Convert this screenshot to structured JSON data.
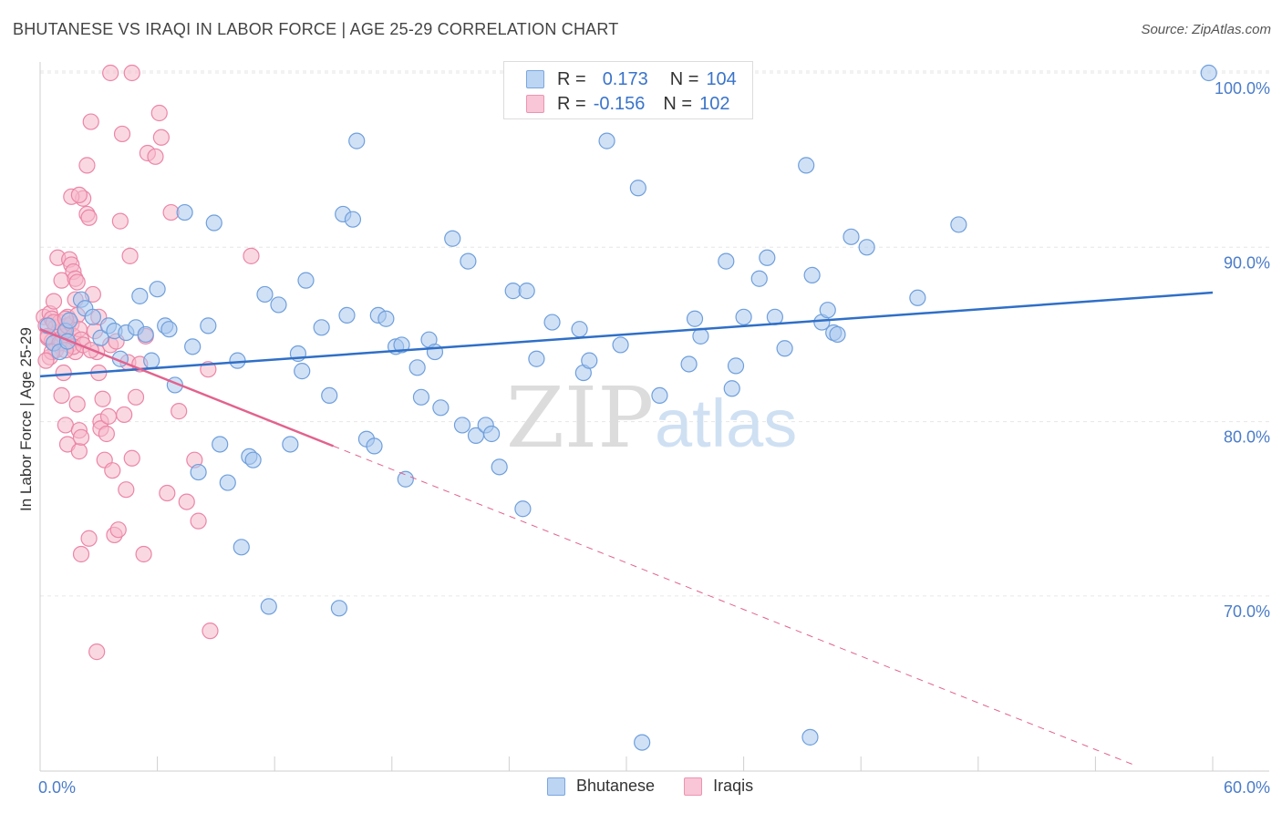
{
  "header": {
    "title": "BHUTANESE VS IRAQI IN LABOR FORCE | AGE 25-29 CORRELATION CHART",
    "source": "Source: ZipAtlas.com"
  },
  "legend": {
    "rows": [
      {
        "r_label": "R =",
        "r_value": "0.173",
        "n_label": "N =",
        "n_value": "104"
      },
      {
        "r_label": "R =",
        "r_value": "-0.156",
        "n_label": "N =",
        "n_value": "102"
      }
    ]
  },
  "watermark": {
    "zip": "ZIP",
    "atlas": "atlas"
  },
  "colors": {
    "blue_fill": "#a9c8ee",
    "blue_stroke": "#6f9fdc",
    "blue_line": "#2f6fc7",
    "pink_fill": "#f6b8cb",
    "pink_stroke": "#eb86a7",
    "pink_line": "#e2628e",
    "axis_label": "#4a7cc9",
    "grid": "#e6e6e6"
  },
  "chart_data": {
    "type": "scatter",
    "title": "BHUTANESE VS IRAQI IN LABOR FORCE | AGE 25-29 CORRELATION CHART",
    "xlabel": "",
    "ylabel": "In Labor Force | Age 25-29",
    "xlim": [
      0,
      60
    ],
    "ylim": [
      60,
      101
    ],
    "x_tick_labels": [
      "0.0%",
      "60.0%"
    ],
    "y_ticks": [
      70,
      80,
      90,
      100
    ],
    "y_tick_labels": [
      "70.0%",
      "80.0%",
      "90.0%",
      "100.0%"
    ],
    "grid": true,
    "legend_position": "bottom-center",
    "series": [
      {
        "name": "Bhutanese",
        "r": 0.173,
        "n": 104,
        "trend": {
          "x": [
            0,
            60
          ],
          "y": [
            82.6,
            87.4
          ],
          "style": "solid"
        },
        "points": [
          [
            0.4,
            85.5
          ],
          [
            0.7,
            84.5
          ],
          [
            1.0,
            84.0
          ],
          [
            1.3,
            85.2
          ],
          [
            1.4,
            84.6
          ],
          [
            1.5,
            85.8
          ],
          [
            2.1,
            87.0
          ],
          [
            2.3,
            86.5
          ],
          [
            2.7,
            86.0
          ],
          [
            3.1,
            84.8
          ],
          [
            3.5,
            85.5
          ],
          [
            3.8,
            85.2
          ],
          [
            4.1,
            83.6
          ],
          [
            4.4,
            85.1
          ],
          [
            4.9,
            85.4
          ],
          [
            5.1,
            87.2
          ],
          [
            5.4,
            85.0
          ],
          [
            5.7,
            83.5
          ],
          [
            6.0,
            87.6
          ],
          [
            6.4,
            85.5
          ],
          [
            6.6,
            85.3
          ],
          [
            6.9,
            82.1
          ],
          [
            7.4,
            92.0
          ],
          [
            7.8,
            84.3
          ],
          [
            8.1,
            77.1
          ],
          [
            8.6,
            85.5
          ],
          [
            8.9,
            91.4
          ],
          [
            9.2,
            78.7
          ],
          [
            9.6,
            76.5
          ],
          [
            10.1,
            83.5
          ],
          [
            10.3,
            72.8
          ],
          [
            10.7,
            78.0
          ],
          [
            10.9,
            77.8
          ],
          [
            11.5,
            87.3
          ],
          [
            11.7,
            69.4
          ],
          [
            12.2,
            86.7
          ],
          [
            12.8,
            78.7
          ],
          [
            13.2,
            83.9
          ],
          [
            13.4,
            82.9
          ],
          [
            13.6,
            88.1
          ],
          [
            14.4,
            85.4
          ],
          [
            14.8,
            81.5
          ],
          [
            15.3,
            69.3
          ],
          [
            15.5,
            91.9
          ],
          [
            15.7,
            86.1
          ],
          [
            16.0,
            91.6
          ],
          [
            16.2,
            96.1
          ],
          [
            16.7,
            79.0
          ],
          [
            17.1,
            78.6
          ],
          [
            17.3,
            86.1
          ],
          [
            17.7,
            85.9
          ],
          [
            18.2,
            84.3
          ],
          [
            18.5,
            84.4
          ],
          [
            18.7,
            76.7
          ],
          [
            19.3,
            83.1
          ],
          [
            19.5,
            81.4
          ],
          [
            19.9,
            84.7
          ],
          [
            20.2,
            84.0
          ],
          [
            20.5,
            80.8
          ],
          [
            21.1,
            90.5
          ],
          [
            21.6,
            79.8
          ],
          [
            21.9,
            89.2
          ],
          [
            22.3,
            79.2
          ],
          [
            22.8,
            79.8
          ],
          [
            23.1,
            79.3
          ],
          [
            23.5,
            77.4
          ],
          [
            24.2,
            87.5
          ],
          [
            24.7,
            75.0
          ],
          [
            24.9,
            87.5
          ],
          [
            25.4,
            83.6
          ],
          [
            26.2,
            85.7
          ],
          [
            27.6,
            85.3
          ],
          [
            27.8,
            82.8
          ],
          [
            28.1,
            83.5
          ],
          [
            29.0,
            96.1
          ],
          [
            29.7,
            84.4
          ],
          [
            30.6,
            93.4
          ],
          [
            30.8,
            61.6
          ],
          [
            31.7,
            81.5
          ],
          [
            33.2,
            83.3
          ],
          [
            33.5,
            85.9
          ],
          [
            33.8,
            84.9
          ],
          [
            35.1,
            89.2
          ],
          [
            35.4,
            81.9
          ],
          [
            35.6,
            83.2
          ],
          [
            36.0,
            86.0
          ],
          [
            36.8,
            88.2
          ],
          [
            37.2,
            89.4
          ],
          [
            37.6,
            86.0
          ],
          [
            38.1,
            84.2
          ],
          [
            39.2,
            94.7
          ],
          [
            39.4,
            61.9
          ],
          [
            39.5,
            88.4
          ],
          [
            40.0,
            85.7
          ],
          [
            40.3,
            86.4
          ],
          [
            40.6,
            85.1
          ],
          [
            40.8,
            85.0
          ],
          [
            41.5,
            90.6
          ],
          [
            42.3,
            90.0
          ],
          [
            44.9,
            87.1
          ],
          [
            47.0,
            91.3
          ],
          [
            59.8,
            100.0
          ]
        ]
      },
      {
        "name": "Iraqis",
        "r": -0.156,
        "n": 102,
        "trend": {
          "x": [
            0,
            15
          ],
          "y": [
            85.3,
            78.6
          ],
          "style": "solid",
          "extended": {
            "x": [
              15,
              56
            ],
            "y": [
              78.6,
              60.3
            ],
            "style": "dashed"
          }
        },
        "points": [
          [
            0.2,
            86.0
          ],
          [
            0.3,
            85.5
          ],
          [
            0.4,
            84.8
          ],
          [
            0.5,
            86.2
          ],
          [
            0.6,
            85.9
          ],
          [
            0.6,
            84.6
          ],
          [
            0.7,
            86.9
          ],
          [
            0.8,
            85.4
          ],
          [
            0.8,
            84.1
          ],
          [
            0.9,
            85.1
          ],
          [
            1.0,
            85.7
          ],
          [
            1.1,
            84.6
          ],
          [
            1.2,
            84.9
          ],
          [
            1.3,
            85.3
          ],
          [
            1.4,
            86.0
          ],
          [
            1.4,
            85.5
          ],
          [
            1.5,
            84.4
          ],
          [
            1.6,
            85.6
          ],
          [
            1.7,
            84.9
          ],
          [
            1.8,
            84.0
          ],
          [
            1.9,
            86.1
          ],
          [
            2.0,
            85.3
          ],
          [
            2.1,
            84.7
          ],
          [
            0.4,
            84.9
          ],
          [
            0.7,
            85.7
          ],
          [
            1.0,
            84.5
          ],
          [
            1.3,
            85.9
          ],
          [
            1.7,
            84.3
          ],
          [
            2.2,
            84.4
          ],
          [
            0.5,
            83.7
          ],
          [
            0.9,
            89.4
          ],
          [
            1.1,
            88.1
          ],
          [
            1.2,
            82.8
          ],
          [
            1.3,
            79.8
          ],
          [
            1.4,
            78.7
          ],
          [
            1.5,
            89.3
          ],
          [
            1.6,
            89.0
          ],
          [
            1.7,
            88.6
          ],
          [
            1.8,
            88.2
          ],
          [
            1.9,
            88.0
          ],
          [
            1.9,
            81.0
          ],
          [
            2.0,
            79.5
          ],
          [
            2.0,
            78.3
          ],
          [
            2.1,
            79.1
          ],
          [
            2.2,
            92.8
          ],
          [
            1.6,
            92.9
          ],
          [
            2.0,
            93.0
          ],
          [
            2.4,
            94.7
          ],
          [
            2.4,
            91.9
          ],
          [
            2.5,
            91.7
          ],
          [
            2.6,
            97.2
          ],
          [
            2.7,
            87.3
          ],
          [
            2.8,
            85.2
          ],
          [
            2.9,
            84.0
          ],
          [
            3.0,
            86.0
          ],
          [
            3.1,
            80.0
          ],
          [
            3.1,
            79.6
          ],
          [
            3.2,
            81.3
          ],
          [
            3.3,
            77.8
          ],
          [
            3.4,
            79.3
          ],
          [
            3.5,
            80.3
          ],
          [
            3.6,
            84.4
          ],
          [
            3.7,
            77.2
          ],
          [
            3.8,
            73.5
          ],
          [
            3.9,
            84.6
          ],
          [
            4.0,
            73.8
          ],
          [
            4.1,
            91.5
          ],
          [
            4.2,
            96.5
          ],
          [
            4.3,
            80.4
          ],
          [
            4.4,
            76.1
          ],
          [
            4.5,
            83.4
          ],
          [
            4.6,
            89.5
          ],
          [
            4.7,
            77.9
          ],
          [
            4.9,
            81.4
          ],
          [
            5.1,
            83.3
          ],
          [
            5.3,
            72.4
          ],
          [
            5.4,
            84.9
          ],
          [
            5.5,
            95.4
          ],
          [
            5.9,
            95.2
          ],
          [
            6.1,
            97.7
          ],
          [
            6.2,
            96.3
          ],
          [
            6.5,
            75.9
          ],
          [
            6.7,
            92.0
          ],
          [
            7.1,
            80.6
          ],
          [
            7.5,
            75.4
          ],
          [
            7.9,
            77.8
          ],
          [
            8.1,
            74.3
          ],
          [
            8.6,
            83.0
          ],
          [
            8.7,
            68.0
          ],
          [
            10.8,
            89.5
          ],
          [
            1.1,
            81.5
          ],
          [
            2.1,
            72.4
          ],
          [
            2.5,
            73.3
          ],
          [
            2.9,
            66.8
          ],
          [
            3.6,
            100.0
          ],
          [
            4.7,
            100.0
          ],
          [
            1.3,
            84.1
          ],
          [
            2.6,
            84.1
          ],
          [
            0.6,
            84.0
          ],
          [
            1.8,
            87.0
          ],
          [
            0.3,
            83.5
          ],
          [
            3.0,
            82.8
          ]
        ]
      }
    ]
  },
  "bottom_legend": {
    "items": [
      {
        "label": "Bhutanese"
      },
      {
        "label": "Iraqis"
      }
    ]
  }
}
